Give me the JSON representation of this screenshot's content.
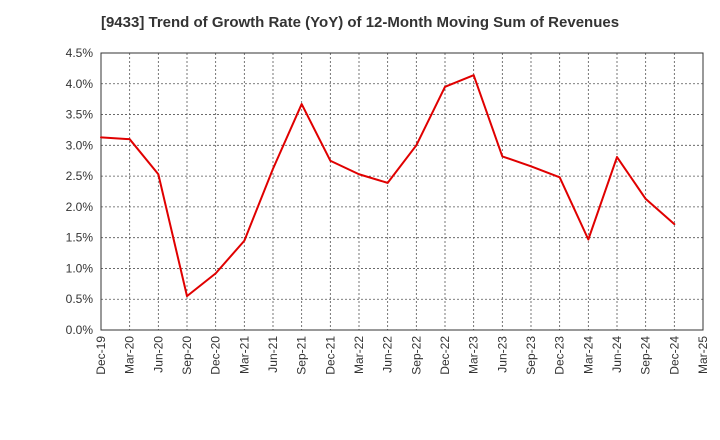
{
  "chart_data": {
    "type": "line",
    "title": "[9433]  Trend of Growth Rate (YoY) of 12-Month Moving Sum of Revenues",
    "xlabel": "",
    "ylabel": "",
    "ylim": [
      0,
      4.5
    ],
    "y_ticks": [
      "0.0%",
      "0.5%",
      "1.0%",
      "1.5%",
      "2.0%",
      "2.5%",
      "3.0%",
      "3.5%",
      "4.0%",
      "4.5%"
    ],
    "x_ticks": [
      "Dec-19",
      "Mar-20",
      "Jun-20",
      "Sep-20",
      "Dec-20",
      "Mar-21",
      "Jun-21",
      "Sep-21",
      "Dec-21",
      "Mar-22",
      "Jun-22",
      "Sep-22",
      "Dec-22",
      "Mar-23",
      "Jun-23",
      "Sep-23",
      "Dec-23",
      "Mar-24",
      "Jun-24",
      "Sep-24",
      "Dec-24",
      "Mar-25"
    ],
    "grid": true,
    "series": [
      {
        "color": "#e00000",
        "x": [
          "Dec-19",
          "Mar-20",
          "Jun-20",
          "Sep-20",
          "Dec-20",
          "Mar-21",
          "Jun-21",
          "Sep-21",
          "Dec-21",
          "Mar-22",
          "Jun-22",
          "Sep-22",
          "Dec-22",
          "Mar-23",
          "Jun-23",
          "Sep-23",
          "Dec-23",
          "Mar-24",
          "Jun-24",
          "Sep-24",
          "Dec-24"
        ],
        "values": [
          3.13,
          3.1,
          2.53,
          0.55,
          0.92,
          1.45,
          2.62,
          3.67,
          2.75,
          2.53,
          2.39,
          3.0,
          3.95,
          4.14,
          2.82,
          2.66,
          2.48,
          1.47,
          2.81,
          2.13,
          1.72
        ]
      }
    ]
  }
}
